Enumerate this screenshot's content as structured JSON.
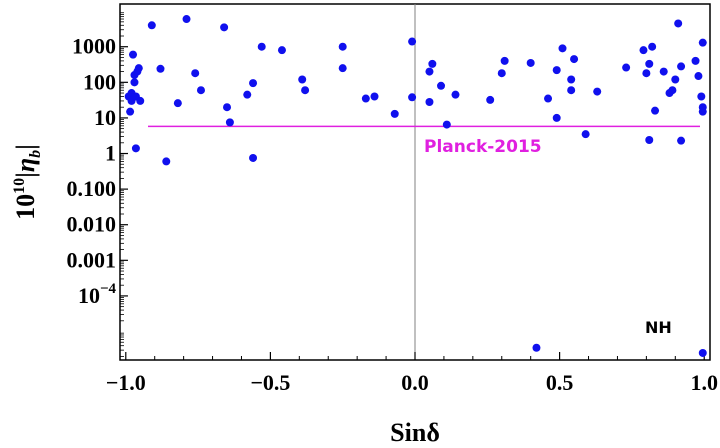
{
  "chart_data": {
    "type": "scatter",
    "title": "",
    "xlabel": "Sinδ",
    "ylabel": "10¹⁰|η_b|",
    "xlim": [
      -1.02,
      1.02
    ],
    "ylim_log10": [
      -5.8,
      4.2
    ],
    "y_scale": "log",
    "grid": false,
    "x_ticks": [
      {
        "v": -1.0,
        "label": "−1.0"
      },
      {
        "v": -0.5,
        "label": "−0.5"
      },
      {
        "v": 0.0,
        "label": "0.0"
      },
      {
        "v": 0.5,
        "label": "0.5"
      },
      {
        "v": 1.0,
        "label": "1.0"
      }
    ],
    "y_ticks": [
      {
        "exp": 3,
        "label": "1000"
      },
      {
        "exp": 2,
        "label": "100"
      },
      {
        "exp": 1,
        "label": "10"
      },
      {
        "exp": 0,
        "label": "1"
      },
      {
        "exp": -1,
        "label": "0.100"
      },
      {
        "exp": -2,
        "label": "0.010"
      },
      {
        "exp": -3,
        "label": "0.001"
      }
    ],
    "y_tick_sci": {
      "exp": -4,
      "base": "10",
      "power": "−4"
    },
    "reference_line": {
      "y": 5.8,
      "label": "Planck-2015",
      "color": "#e020e0"
    },
    "annotation": "NH",
    "colors": {
      "points": "#1010ee",
      "zero_line": "#808080"
    },
    "series": [
      {
        "points": [
          [
            -0.99,
            40
          ],
          [
            -0.985,
            15
          ],
          [
            -0.98,
            30
          ],
          [
            -0.98,
            50
          ],
          [
            -0.975,
            600
          ],
          [
            -0.97,
            100
          ],
          [
            -0.97,
            160
          ],
          [
            -0.965,
            40
          ],
          [
            -0.965,
            1.4
          ],
          [
            -0.96,
            200
          ],
          [
            -0.955,
            250
          ],
          [
            -0.95,
            30
          ],
          [
            -0.91,
            4000
          ],
          [
            -0.88,
            240
          ],
          [
            -0.86,
            0.6
          ],
          [
            -0.82,
            26
          ],
          [
            -0.79,
            6000
          ],
          [
            -0.76,
            180
          ],
          [
            -0.74,
            60
          ],
          [
            -0.66,
            3500
          ],
          [
            -0.65,
            20
          ],
          [
            -0.64,
            7.5
          ],
          [
            -0.58,
            45
          ],
          [
            -0.56,
            0.75
          ],
          [
            -0.56,
            95
          ],
          [
            -0.53,
            1000
          ],
          [
            -0.46,
            800
          ],
          [
            -0.39,
            120
          ],
          [
            -0.38,
            60
          ],
          [
            -0.25,
            1000
          ],
          [
            -0.25,
            250
          ],
          [
            -0.17,
            35
          ],
          [
            -0.14,
            40
          ],
          [
            -0.07,
            13
          ],
          [
            -0.01,
            38
          ],
          [
            -0.01,
            1400
          ],
          [
            0.05,
            200
          ],
          [
            0.06,
            330
          ],
          [
            0.05,
            28
          ],
          [
            0.09,
            80
          ],
          [
            0.11,
            6.5
          ],
          [
            0.14,
            45
          ],
          [
            0.26,
            32
          ],
          [
            0.3,
            180
          ],
          [
            0.31,
            400
          ],
          [
            0.4,
            350
          ],
          [
            0.42,
            3.5e-06
          ],
          [
            0.46,
            35
          ],
          [
            0.49,
            10
          ],
          [
            0.49,
            220
          ],
          [
            0.51,
            900
          ],
          [
            0.54,
            60
          ],
          [
            0.54,
            120
          ],
          [
            0.55,
            450
          ],
          [
            0.59,
            3.5
          ],
          [
            0.63,
            55
          ],
          [
            0.73,
            260
          ],
          [
            0.79,
            800
          ],
          [
            0.8,
            180
          ],
          [
            0.81,
            330
          ],
          [
            0.81,
            2.4
          ],
          [
            0.82,
            1000
          ],
          [
            0.83,
            16
          ],
          [
            0.86,
            200
          ],
          [
            0.88,
            50
          ],
          [
            0.89,
            60
          ],
          [
            0.9,
            120
          ],
          [
            0.91,
            4500
          ],
          [
            0.92,
            280
          ],
          [
            0.92,
            2.3
          ],
          [
            0.97,
            400
          ],
          [
            0.98,
            150
          ],
          [
            0.99,
            40
          ],
          [
            0.995,
            20
          ],
          [
            0.995,
            15
          ],
          [
            0.995,
            1300
          ],
          [
            0.995,
            2.5e-06
          ]
        ]
      }
    ]
  }
}
